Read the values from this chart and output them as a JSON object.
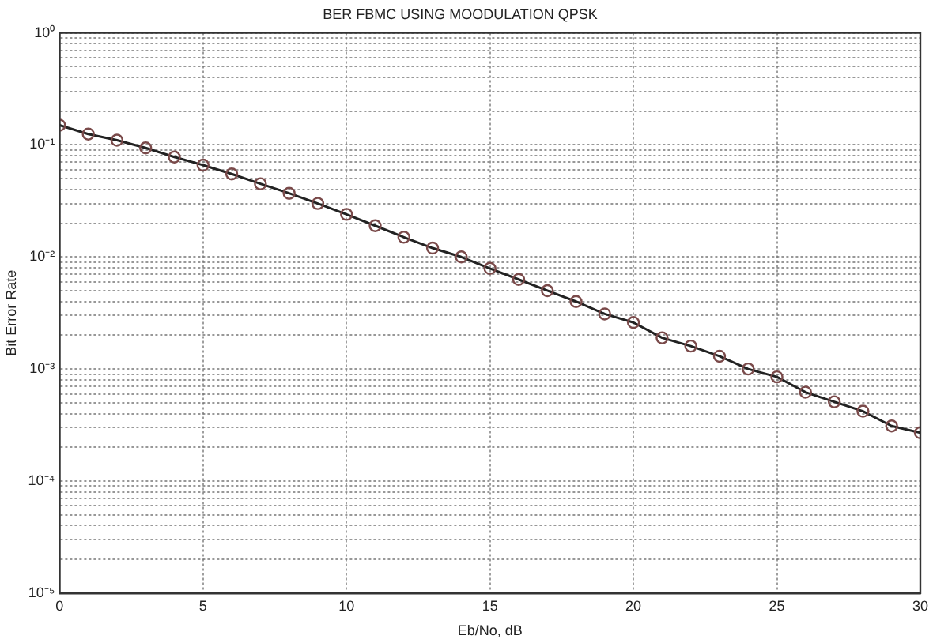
{
  "chart_data": {
    "type": "line",
    "title": "BER FBMC USING MOODULATION QPSK",
    "xlabel": "Eb/No, dB",
    "ylabel": "Bit Error Rate",
    "x": [
      0,
      1,
      2,
      3,
      4,
      5,
      6,
      7,
      8,
      9,
      10,
      11,
      12,
      13,
      14,
      15,
      16,
      17,
      18,
      19,
      20,
      21,
      22,
      23,
      24,
      25,
      26,
      27,
      28,
      29,
      30
    ],
    "series": [
      {
        "color": "#7a4a4a",
        "values": [
          0.15,
          0.125,
          0.11,
          0.094,
          0.078,
          0.066,
          0.055,
          0.045,
          0.037,
          0.03,
          0.024,
          0.019,
          0.015,
          0.012,
          0.01,
          0.0079,
          0.0063,
          0.005,
          0.004,
          0.0031,
          0.0026,
          0.0019,
          0.0016,
          0.0013,
          0.001,
          0.00085,
          0.00062,
          0.00051,
          0.00042,
          0.00031,
          0.00027
        ]
      }
    ],
    "xlim": [
      0,
      30
    ],
    "xticks": [
      0,
      5,
      10,
      15,
      20,
      25,
      30
    ],
    "ylim": [
      1e-05,
      1
    ],
    "yticks": [
      {
        "value": 1e-05,
        "label": "10⁻⁵"
      },
      {
        "value": 2e-05,
        "label": null
      },
      {
        "value": 3e-05,
        "label": null
      },
      {
        "value": 4e-05,
        "label": null
      },
      {
        "value": 5e-05,
        "label": null
      },
      {
        "value": 6e-05,
        "label": null
      },
      {
        "value": 7e-05,
        "label": null
      },
      {
        "value": 8e-05,
        "label": null
      },
      {
        "value": 9e-05,
        "label": null
      },
      {
        "value": 0.0001,
        "label": "10⁻⁴"
      },
      {
        "value": 0.0002,
        "label": null
      },
      {
        "value": 0.0003,
        "label": null
      },
      {
        "value": 0.0004,
        "label": null
      },
      {
        "value": 0.0005,
        "label": null
      },
      {
        "value": 0.0006,
        "label": null
      },
      {
        "value": 0.0007,
        "label": null
      },
      {
        "value": 0.0008,
        "label": null
      },
      {
        "value": 0.0009,
        "label": null
      },
      {
        "value": 0.001,
        "label": "10⁻³"
      },
      {
        "value": 0.002,
        "label": null
      },
      {
        "value": 0.003,
        "label": null
      },
      {
        "value": 0.004,
        "label": null
      },
      {
        "value": 0.005,
        "label": null
      },
      {
        "value": 0.006,
        "label": null
      },
      {
        "value": 0.007,
        "label": null
      },
      {
        "value": 0.008,
        "label": null
      },
      {
        "value": 0.009,
        "label": null
      },
      {
        "value": 0.01,
        "label": "10⁻²"
      },
      {
        "value": 0.02,
        "label": null
      },
      {
        "value": 0.03,
        "label": null
      },
      {
        "value": 0.04,
        "label": null
      },
      {
        "value": 0.05,
        "label": null
      },
      {
        "value": 0.06,
        "label": null
      },
      {
        "value": 0.07,
        "label": null
      },
      {
        "value": 0.08,
        "label": null
      },
      {
        "value": 0.09,
        "label": null
      },
      {
        "value": 0.1,
        "label": "10⁻¹"
      },
      {
        "value": 0.2,
        "label": null
      },
      {
        "value": 0.3,
        "label": null
      },
      {
        "value": 0.4,
        "label": null
      },
      {
        "value": 0.5,
        "label": null
      },
      {
        "value": 0.6,
        "label": null
      },
      {
        "value": 0.7,
        "label": null
      },
      {
        "value": 0.8,
        "label": null
      },
      {
        "value": 0.9,
        "label": null
      },
      {
        "value": 1,
        "label": "10⁰"
      }
    ],
    "log": "y",
    "grid": true,
    "marker": "circle",
    "line_style": "solid",
    "legend": false
  }
}
